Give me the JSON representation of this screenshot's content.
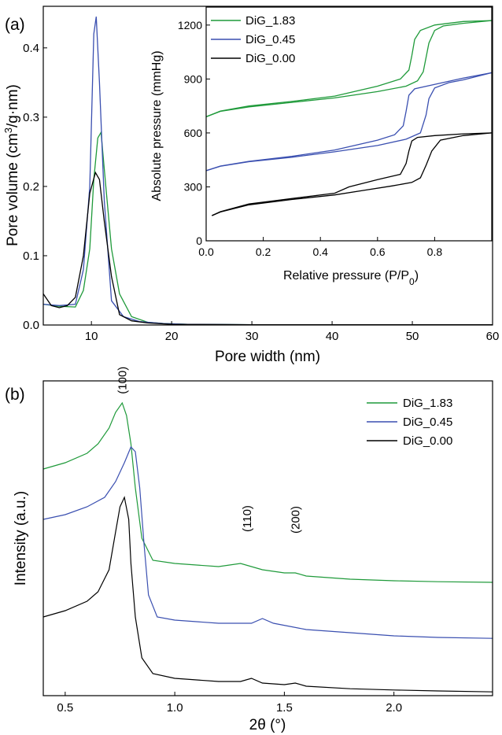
{
  "panel_labels": [
    "(a)",
    "(b)"
  ],
  "chart_data": [
    {
      "id": "a_main",
      "type": "line",
      "xlabel": "Pore width (nm)",
      "ylabel_parts": [
        "Pore volume (cm",
        "3",
        "/g·nm)"
      ],
      "xlim": [
        4,
        60
      ],
      "ylim": [
        0,
        0.46
      ],
      "xticks": [
        10,
        20,
        30,
        40,
        50,
        60
      ],
      "yticks": [
        0.0,
        0.1,
        0.2,
        0.3,
        0.4
      ],
      "series": [
        {
          "name": "DiG_1.83",
          "color": "#1f9a3a",
          "x": [
            4,
            6,
            8,
            9,
            9.8,
            10.3,
            10.8,
            11.2,
            11.8,
            12.5,
            13.5,
            15,
            17,
            19,
            22,
            30,
            60
          ],
          "y": [
            0.03,
            0.027,
            0.026,
            0.05,
            0.11,
            0.21,
            0.27,
            0.278,
            0.2,
            0.11,
            0.045,
            0.012,
            0.004,
            0.002,
            0.001,
            0.0005,
            0.0005
          ]
        },
        {
          "name": "DiG_0.45",
          "color": "#3a4fb0",
          "x": [
            4,
            6,
            8,
            9,
            9.8,
            10.3,
            10.6,
            11,
            11.6,
            12.5,
            14,
            16,
            19,
            22,
            30,
            60
          ],
          "y": [
            0.03,
            0.028,
            0.03,
            0.08,
            0.2,
            0.42,
            0.445,
            0.35,
            0.18,
            0.035,
            0.012,
            0.005,
            0.002,
            0.001,
            0.0005,
            0.0005
          ]
        },
        {
          "name": "DiG_0.00",
          "color": "#000000",
          "x": [
            4,
            5,
            6,
            7,
            8,
            9,
            9.8,
            10.5,
            11,
            11.6,
            12.5,
            13.5,
            15,
            17,
            20,
            30,
            60
          ],
          "y": [
            0.045,
            0.028,
            0.025,
            0.028,
            0.04,
            0.1,
            0.19,
            0.22,
            0.21,
            0.15,
            0.07,
            0.015,
            0.006,
            0.003,
            0.001,
            0.0005,
            0.0005
          ]
        }
      ]
    },
    {
      "id": "a_inset",
      "type": "line",
      "xlabel_parts": [
        "Relative pressure (P/P",
        "0",
        ")"
      ],
      "ylabel": "Absolute pressure (mmHg)",
      "xlim": [
        0,
        1.0
      ],
      "ylim": [
        0,
        1300
      ],
      "xticks": [
        0.0,
        0.2,
        0.4,
        0.6,
        0.8
      ],
      "yticks": [
        0,
        300,
        600,
        900,
        1200
      ],
      "legend": [
        "DiG_1.83",
        "DiG_0.45",
        "DiG_0.00"
      ],
      "series": [
        {
          "name": "DiG_1.83",
          "color": "#1f9a3a",
          "loops": [
            {
              "x": [
                0.0,
                0.05,
                0.15,
                0.3,
                0.45,
                0.6,
                0.7,
                0.74,
                0.76,
                0.77,
                0.78,
                0.8,
                0.83,
                0.9,
                1.0
              ],
              "y": [
                690,
                720,
                745,
                770,
                795,
                830,
                860,
                890,
                940,
                1020,
                1100,
                1170,
                1195,
                1210,
                1225
              ]
            },
            {
              "x": [
                1.0,
                0.9,
                0.8,
                0.75,
                0.73,
                0.72,
                0.71,
                0.68,
                0.6,
                0.45,
                0.3,
                0.15,
                0.05,
                0.0
              ],
              "y": [
                1225,
                1220,
                1200,
                1170,
                1120,
                1030,
                950,
                900,
                860,
                805,
                775,
                750,
                722,
                690
              ]
            }
          ]
        },
        {
          "name": "DiG_0.45",
          "color": "#3a4fb0",
          "loops": [
            {
              "x": [
                0.0,
                0.05,
                0.15,
                0.3,
                0.45,
                0.6,
                0.7,
                0.75,
                0.77,
                0.78,
                0.8,
                0.85,
                0.9,
                1.0
              ],
              "y": [
                390,
                415,
                440,
                465,
                495,
                530,
                565,
                600,
                700,
                790,
                850,
                880,
                895,
                935
              ]
            },
            {
              "x": [
                1.0,
                0.9,
                0.8,
                0.73,
                0.71,
                0.7,
                0.69,
                0.66,
                0.6,
                0.45,
                0.3,
                0.15,
                0.05,
                0.0
              ],
              "y": [
                935,
                905,
                870,
                845,
                810,
                720,
                640,
                590,
                560,
                505,
                470,
                442,
                416,
                390
              ]
            }
          ]
        },
        {
          "name": "DiG_0.00",
          "color": "#000000",
          "loops": [
            {
              "x": [
                0.02,
                0.05,
                0.15,
                0.3,
                0.45,
                0.55,
                0.65,
                0.72,
                0.75,
                0.77,
                0.79,
                0.82,
                0.9,
                1.0
              ],
              "y": [
                140,
                160,
                200,
                230,
                255,
                280,
                305,
                325,
                350,
                420,
                500,
                560,
                585,
                600
              ]
            },
            {
              "x": [
                1.0,
                0.9,
                0.8,
                0.74,
                0.72,
                0.71,
                0.7,
                0.68,
                0.6,
                0.5,
                0.45,
                0.3,
                0.15,
                0.05,
                0.02
              ],
              "y": [
                600,
                595,
                585,
                575,
                555,
                500,
                430,
                370,
                340,
                300,
                265,
                235,
                205,
                162,
                140
              ]
            }
          ]
        }
      ]
    },
    {
      "id": "b",
      "type": "line",
      "xlabel_parts": [
        "2θ (",
        "°",
        ")"
      ],
      "ylabel": "Intensity (a.u.)",
      "xlim": [
        0.4,
        2.45
      ],
      "ylim": [
        0,
        1
      ],
      "xticks": [
        0.5,
        1.0,
        1.5,
        2.0
      ],
      "xtick_labels": [
        "0.5",
        "1.0",
        "1.5",
        "2.0"
      ],
      "legend": [
        "DiG_1.83",
        "DiG_0.45",
        "DiG_0.00"
      ],
      "annotations": [
        {
          "text": "(100)",
          "x": 0.76,
          "y": 0.958
        },
        {
          "text": "(110)",
          "x": 1.33,
          "y": 0.52
        },
        {
          "text": "(200)",
          "x": 1.55,
          "y": 0.515
        }
      ],
      "series": [
        {
          "name": "DiG_1.83",
          "color": "#1f9a3a",
          "x": [
            0.4,
            0.5,
            0.6,
            0.65,
            0.7,
            0.73,
            0.76,
            0.78,
            0.8,
            0.82,
            0.85,
            0.9,
            1.0,
            1.2,
            1.3,
            1.4,
            1.5,
            1.55,
            1.6,
            1.8,
            2.0,
            2.2,
            2.45
          ],
          "y": [
            0.72,
            0.74,
            0.77,
            0.8,
            0.85,
            0.9,
            0.93,
            0.89,
            0.8,
            0.66,
            0.5,
            0.43,
            0.42,
            0.41,
            0.42,
            0.4,
            0.39,
            0.39,
            0.38,
            0.37,
            0.365,
            0.362,
            0.36
          ]
        },
        {
          "name": "DiG_0.45",
          "color": "#3a4fb0",
          "x": [
            0.4,
            0.5,
            0.6,
            0.68,
            0.73,
            0.77,
            0.8,
            0.82,
            0.84,
            0.86,
            0.88,
            0.92,
            1.0,
            1.2,
            1.35,
            1.4,
            1.45,
            1.6,
            1.8,
            2.0,
            2.2,
            2.45
          ],
          "y": [
            0.56,
            0.575,
            0.6,
            0.63,
            0.68,
            0.74,
            0.79,
            0.775,
            0.66,
            0.48,
            0.32,
            0.25,
            0.24,
            0.23,
            0.23,
            0.245,
            0.23,
            0.21,
            0.2,
            0.19,
            0.185,
            0.182
          ]
        },
        {
          "name": "DiG_0.00",
          "color": "#000000",
          "x": [
            0.4,
            0.5,
            0.6,
            0.65,
            0.7,
            0.73,
            0.75,
            0.77,
            0.79,
            0.8,
            0.82,
            0.85,
            0.9,
            1.0,
            1.2,
            1.3,
            1.35,
            1.4,
            1.5,
            1.55,
            1.6,
            1.8,
            2.0,
            2.2,
            2.45
          ],
          "y": [
            0.25,
            0.27,
            0.3,
            0.33,
            0.4,
            0.52,
            0.6,
            0.63,
            0.56,
            0.42,
            0.25,
            0.12,
            0.07,
            0.055,
            0.045,
            0.045,
            0.055,
            0.04,
            0.035,
            0.04,
            0.03,
            0.022,
            0.018,
            0.015,
            0.012
          ]
        }
      ]
    }
  ]
}
